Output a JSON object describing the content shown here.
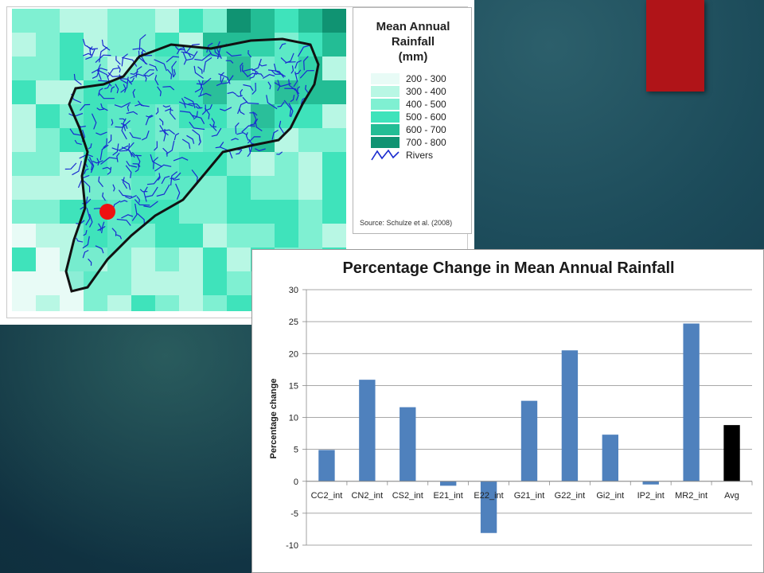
{
  "map": {
    "legend_title_lines": [
      "Mean Annual",
      "Rainfall",
      "(mm)"
    ],
    "legend": [
      {
        "label": "200 - 300",
        "color": "#e8fbf6"
      },
      {
        "label": "300 - 400",
        "color": "#b8f7e4"
      },
      {
        "label": "400 - 500",
        "color": "#7ff0d2"
      },
      {
        "label": "500 - 600",
        "color": "#3fe3bb"
      },
      {
        "label": "600 - 700",
        "color": "#23bd95"
      },
      {
        "label": "700 - 800",
        "color": "#109372"
      }
    ],
    "rivers_label": "Rivers",
    "river_color": "#1a2bd0",
    "source": "Source: Schulze et al. (2008)",
    "marker_color": "#ee1111"
  },
  "chart_data": {
    "type": "bar",
    "title": "Percentage Change in Mean Annual Rainfall",
    "xlabel": "",
    "ylabel": "Percentage change",
    "ylim": [
      -10,
      30
    ],
    "yticks": [
      -10,
      -5,
      0,
      5,
      10,
      15,
      20,
      25,
      30
    ],
    "grid": true,
    "categories": [
      "CC2_int",
      "CN2_int",
      "CS2_int",
      "E21_int",
      "E22_int",
      "G21_int",
      "G22_int",
      "Gi2_int",
      "IP2_int",
      "MR2_int",
      "Avg"
    ],
    "values": [
      4.9,
      15.9,
      11.6,
      -0.7,
      -8.1,
      12.6,
      20.5,
      7.3,
      -0.5,
      24.7,
      8.8
    ],
    "colors": [
      "#4f81bd",
      "#4f81bd",
      "#4f81bd",
      "#4f81bd",
      "#4f81bd",
      "#4f81bd",
      "#4f81bd",
      "#4f81bd",
      "#4f81bd",
      "#4f81bd",
      "#000000"
    ]
  }
}
